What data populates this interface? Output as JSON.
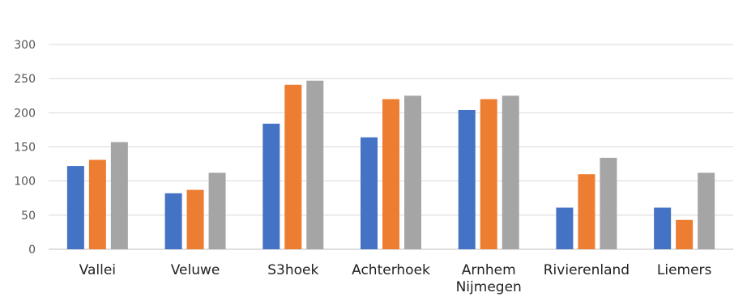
{
  "chart_data": {
    "type": "bar",
    "title": "",
    "xlabel": "",
    "ylabel": "",
    "ylim": [
      0,
      300
    ],
    "yticks": [
      0,
      50,
      100,
      150,
      200,
      250,
      300
    ],
    "grid": true,
    "categories": [
      [
        "Vallei"
      ],
      [
        "Veluwe"
      ],
      [
        "S3hoek"
      ],
      [
        "Achterhoek"
      ],
      [
        "Arnhem",
        "Nijmegen"
      ],
      [
        "Rivierenland"
      ],
      [
        "Liemers"
      ]
    ],
    "series": [
      {
        "color": "#4472c4",
        "values": [
          122,
          82,
          184,
          164,
          204,
          61,
          61
        ]
      },
      {
        "color": "#ed7d31",
        "values": [
          131,
          87,
          241,
          220,
          220,
          110,
          43
        ]
      },
      {
        "color": "#a5a5a5",
        "values": [
          157,
          112,
          247,
          225,
          225,
          134,
          112
        ]
      }
    ]
  }
}
